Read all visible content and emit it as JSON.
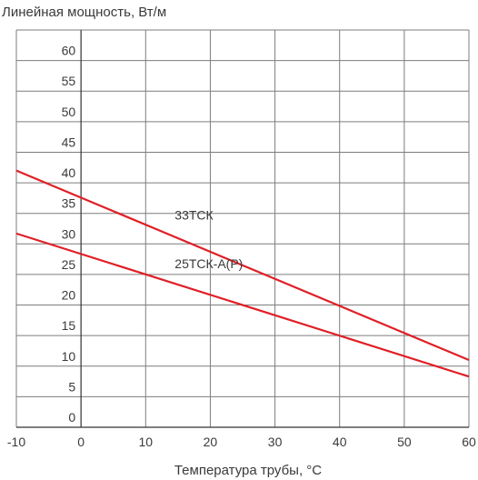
{
  "chart_data": {
    "type": "line",
    "ylabel": "Линейная мощность, Вт/м",
    "xlabel": "Температура трубы, °С",
    "xlim": [
      -10,
      60
    ],
    "ylim": [
      0,
      65
    ],
    "x_ticks": [
      "-10",
      "0",
      "10",
      "20",
      "30",
      "40",
      "50",
      "60"
    ],
    "y_ticks": [
      "0",
      "5",
      "10",
      "15",
      "20",
      "25",
      "30",
      "35",
      "40",
      "45",
      "50",
      "55",
      "60"
    ],
    "grid": true,
    "series": [
      {
        "name": "33ТСК",
        "x": [
          -10,
          60
        ],
        "y": [
          42,
          11
        ],
        "color": "#e01f26"
      },
      {
        "name": "25ТСК-А(Р)",
        "x": [
          -10,
          60
        ],
        "y": [
          31.7,
          8.3
        ],
        "color": "#e01f26"
      }
    ],
    "annotations": [
      {
        "text": "33ТСК",
        "x": 14.5,
        "y": 34
      },
      {
        "text": "25ТСК-А(Р)",
        "x": 14.5,
        "y": 26
      }
    ]
  }
}
